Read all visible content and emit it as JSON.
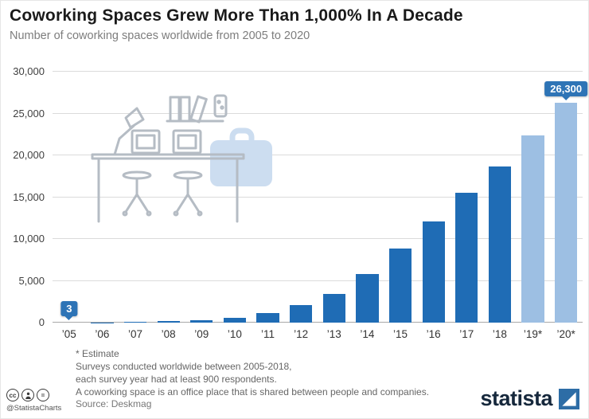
{
  "header": {
    "title": "Coworking Spaces Grew More Than 1,000% In A Decade",
    "subtitle": "Number of coworking spaces worldwide from 2005 to 2020"
  },
  "chart_data": {
    "type": "bar",
    "title": "Coworking Spaces Grew More Than 1,000% In A Decade",
    "xlabel": "",
    "ylabel": "",
    "categories": [
      "’05",
      "’06",
      "’07",
      "’08",
      "’09",
      "’10",
      "’11",
      "’12",
      "’13",
      "’14",
      "’15",
      "’16",
      "’17",
      "’18",
      "’19*",
      "’20*"
    ],
    "values": [
      3,
      30,
      75,
      160,
      310,
      600,
      1130,
      2070,
      3400,
      5780,
      8900,
      12100,
      15500,
      18700,
      22400,
      26300
    ],
    "ylim": [
      0,
      30000
    ],
    "ytick_interval": 5000,
    "ytick_labels": [
      "0",
      "5,000",
      "10,000",
      "15,000",
      "20,000",
      "25,000",
      "30,000"
    ],
    "grid": true,
    "legend": "none",
    "bar_color": "#1f6cb5",
    "estimate_bar_color": "#9dbfe3",
    "estimate_indices": [
      14,
      15
    ],
    "annotations": [
      {
        "index": 0,
        "label": "3"
      },
      {
        "index": 15,
        "label": "26,300"
      }
    ]
  },
  "footnotes": {
    "lines": [
      "* Estimate",
      "Surveys conducted worldwide between 2005-2018,",
      "each survey year had at least 900 respondents.",
      "A coworking space is an office place that is shared between people and companies."
    ]
  },
  "footer": {
    "handle": "@StatistaCharts",
    "source": "Source: Deskmag",
    "brand": "statista"
  },
  "colors": {
    "accent": "#1f6cb5",
    "estimate": "#9dbfe3",
    "badge": "#2e74b6"
  }
}
